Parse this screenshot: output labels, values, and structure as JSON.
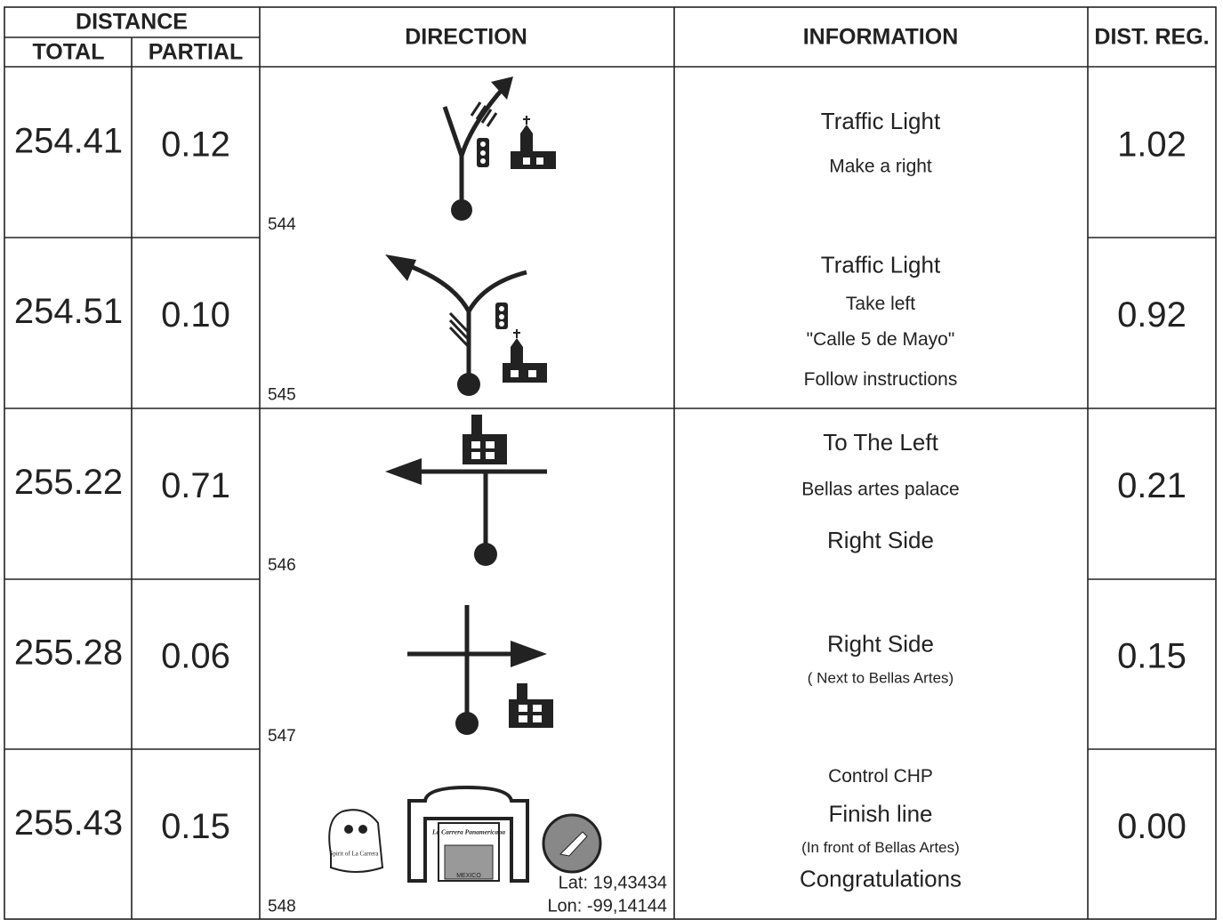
{
  "header": {
    "distance": "DISTANCE",
    "total": "TOTAL",
    "partial": "PARTIAL",
    "direction": "DIRECTION",
    "information": "INFORMATION",
    "dist_reg": "DIST. REG."
  },
  "rows": [
    {
      "total": "254.41",
      "partial": "0.12",
      "number": "544",
      "info": [
        "Traffic Light",
        "Make a right"
      ],
      "dist_reg": "1.02"
    },
    {
      "total": "254.51",
      "partial": "0.10",
      "number": "545",
      "info": [
        "Traffic Light",
        "Take left",
        "\"Calle 5 de Mayo\"",
        "Follow instructions"
      ],
      "dist_reg": "0.92"
    },
    {
      "total": "255.22",
      "partial": "0.71",
      "number": "546",
      "info": [
        "To The Left",
        "Bellas artes palace",
        "Right Side"
      ],
      "dist_reg": "0.21"
    },
    {
      "total": "255.28",
      "partial": "0.06",
      "number": "547",
      "info": [
        "Right Side",
        "( Next to Bellas Artes)"
      ],
      "dist_reg": "0.15"
    },
    {
      "total": "255.43",
      "partial": "0.15",
      "number": "548",
      "info": [
        "Control CHP",
        "Finish line",
        "(In front of Bellas Artes)",
        "Congratulations"
      ],
      "dist_reg": "0.00"
    }
  ],
  "finish": {
    "lat": "Lat: 19,43434",
    "lon": "Lon: -99,14144",
    "logo_title": "La Carrera Panamericana",
    "logo_country": "MEXICO",
    "mascot": "Spirit of La Carrera"
  }
}
